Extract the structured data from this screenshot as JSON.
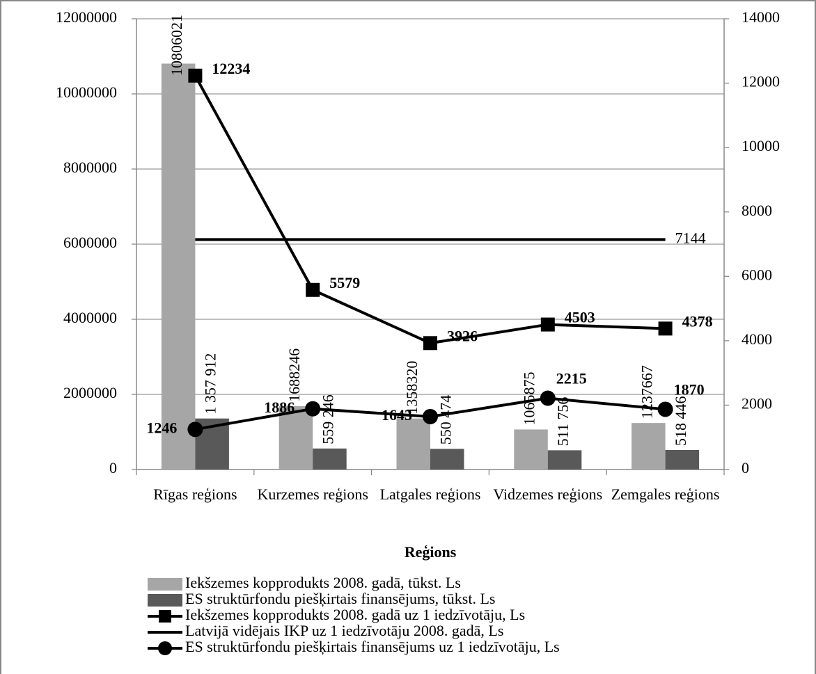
{
  "chart_data": {
    "type": "bar",
    "xlabel": "Reģions",
    "categories": [
      "Rīgas reģions",
      "Kurzemes reģions",
      "Latgales reģions",
      "Vidzemes reģions",
      "Zemgales reģions"
    ],
    "ylim": [
      0,
      12000000
    ],
    "yticks": [
      0,
      2000000,
      4000000,
      6000000,
      8000000,
      10000000,
      12000000
    ],
    "y2lim": [
      0,
      14000
    ],
    "y2ticks": [
      0,
      2000,
      4000,
      6000,
      8000,
      10000,
      12000,
      14000
    ],
    "grid": true,
    "legend": "bottom",
    "series": [
      {
        "name": "Iekšzemes kopprodukts 2008. gadā, tūkst. Ls",
        "type": "bar",
        "color": "#a6a6a6",
        "values": [
          10806021,
          1688246,
          1358320,
          1065875,
          1237667
        ]
      },
      {
        "name": "ES struktūrfondu piešķirtais finansējums, tūkst. Ls",
        "type": "bar",
        "color": "#595959",
        "values": [
          1357912,
          559246,
          550474,
          511756,
          518446
        ],
        "value_labels": [
          "1 357 912",
          "559 246",
          "550 474",
          "511 756",
          "518 446"
        ]
      },
      {
        "name": "Iekšzemes kopprodukts 2008. gadā uz 1 iedzīvotāju, Ls",
        "type": "line",
        "axis": "y2",
        "color": "#000000",
        "marker": "square",
        "values": [
          12234,
          5579,
          3926,
          4503,
          4378
        ]
      },
      {
        "name": "Latvijā vidējais IKP uz 1 iedzīvotāju 2008. gadā, Ls",
        "type": "line",
        "axis": "y2",
        "color": "#000000",
        "marker": "none",
        "values": [
          7144,
          7144,
          7144,
          7144,
          7144
        ]
      },
      {
        "name": "ES struktūrfondu piešķirtais finansējums uz 1 iedzīvotāju, Ls",
        "type": "line",
        "axis": "y2",
        "color": "#000000",
        "marker": "circle",
        "values": [
          1246,
          1886,
          1643,
          2215,
          1870
        ]
      }
    ]
  }
}
